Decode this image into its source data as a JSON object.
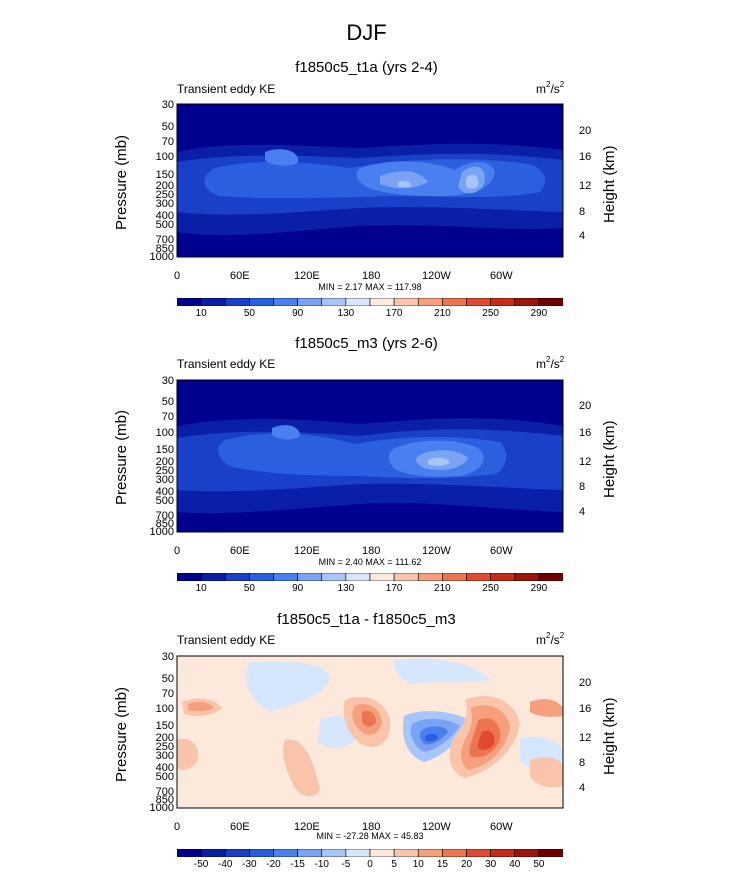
{
  "page": {
    "title": "DJF"
  },
  "chart_data": [
    {
      "type": "heatmap",
      "title": "f1850c5_t1a (yrs 2-4)",
      "variable_label": "Transient eddy KE",
      "units": "m2/s2",
      "units_base": "m",
      "units_exp1": "2",
      "units_mid": "/s",
      "units_exp2": "2",
      "ylabel": "Pressure (mb)",
      "ylabel_right": "Height (km)",
      "x_ticks": [
        "0",
        "60E",
        "120E",
        "180",
        "120W",
        "60W"
      ],
      "y_ticks": [
        "30",
        "50",
        "70",
        "100",
        "150",
        "200",
        "250",
        "300",
        "400",
        "500",
        "700",
        "850",
        "1000"
      ],
      "y_ticks_right": [
        "20",
        "16",
        "12",
        "8",
        "4"
      ],
      "ylim": [
        1000,
        30
      ],
      "min": 2.17,
      "max": 117.98,
      "minmax_text": "MIN =   2.17   MAX = 117.98",
      "colorbar": {
        "levels": [
          "10",
          "50",
          "90",
          "130",
          "170",
          "210",
          "250",
          "290"
        ],
        "colors": [
          "#00008f",
          "#0a1fa8",
          "#1a3fc9",
          "#2a5fe0",
          "#4a7ff0",
          "#7aa3f5",
          "#a8c5fa",
          "#d6e6fc",
          "#fde8dc",
          "#fac4ab",
          "#f59f7c",
          "#ee7450",
          "#e04a2f",
          "#c62a18",
          "#9e1408",
          "#700000"
        ]
      }
    },
    {
      "type": "heatmap",
      "title": "f1850c5_m3 (yrs 2-6)",
      "variable_label": "Transient eddy KE",
      "units": "m2/s2",
      "units_base": "m",
      "units_exp1": "2",
      "units_mid": "/s",
      "units_exp2": "2",
      "ylabel": "Pressure (mb)",
      "ylabel_right": "Height (km)",
      "x_ticks": [
        "0",
        "60E",
        "120E",
        "180",
        "120W",
        "60W"
      ],
      "y_ticks": [
        "30",
        "50",
        "70",
        "100",
        "150",
        "200",
        "250",
        "300",
        "400",
        "500",
        "700",
        "850",
        "1000"
      ],
      "y_ticks_right": [
        "20",
        "16",
        "12",
        "8",
        "4"
      ],
      "ylim": [
        1000,
        30
      ],
      "min": 2.4,
      "max": 111.62,
      "minmax_text": "MIN =   2.40   MAX = 111.62",
      "colorbar": {
        "levels": [
          "10",
          "50",
          "90",
          "130",
          "170",
          "210",
          "250",
          "290"
        ],
        "colors": [
          "#00008f",
          "#0a1fa8",
          "#1a3fc9",
          "#2a5fe0",
          "#4a7ff0",
          "#7aa3f5",
          "#a8c5fa",
          "#d6e6fc",
          "#fde8dc",
          "#fac4ab",
          "#f59f7c",
          "#ee7450",
          "#e04a2f",
          "#c62a18",
          "#9e1408",
          "#700000"
        ]
      }
    },
    {
      "type": "heatmap",
      "title": "f1850c5_t1a - f1850c5_m3",
      "variable_label": "Transient eddy KE",
      "units": "m2/s2",
      "units_base": "m",
      "units_exp1": "2",
      "units_mid": "/s",
      "units_exp2": "2",
      "ylabel": "Pressure (mb)",
      "ylabel_right": "Height (km)",
      "x_ticks": [
        "0",
        "60E",
        "120E",
        "180",
        "120W",
        "60W"
      ],
      "y_ticks": [
        "30",
        "50",
        "70",
        "100",
        "150",
        "200",
        "250",
        "300",
        "400",
        "500",
        "700",
        "850",
        "1000"
      ],
      "y_ticks_right": [
        "20",
        "16",
        "12",
        "8",
        "4"
      ],
      "ylim": [
        1000,
        30
      ],
      "min": -27.28,
      "max": 45.83,
      "minmax_text": "MIN = -27.28   MAX =  45.83",
      "colorbar": {
        "levels": [
          "-50",
          "-40",
          "-30",
          "-20",
          "-15",
          "-10",
          "-5",
          "0",
          "5",
          "10",
          "15",
          "20",
          "30",
          "40",
          "50"
        ],
        "colors": [
          "#00008f",
          "#0a1fa8",
          "#1a3fc9",
          "#2a5fe0",
          "#4a7ff0",
          "#7aa3f5",
          "#a8c5fa",
          "#d6e6fc",
          "#fde8dc",
          "#fac4ab",
          "#f59f7c",
          "#ee7450",
          "#e04a2f",
          "#c62a18",
          "#9e1408",
          "#700000"
        ]
      }
    }
  ]
}
